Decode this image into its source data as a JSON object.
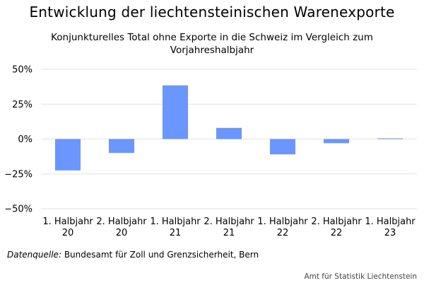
{
  "chart_data": {
    "type": "bar",
    "title": "Entwicklung der liechtensteinischen Warenexporte",
    "subtitle": "Konjunkturelles Total ohne Exporte in die Schweiz im Vergleich zum Vorjahreshalbjahr",
    "categories": [
      [
        "1. Halbjahr",
        "20"
      ],
      [
        "2. Halbjahr",
        "20"
      ],
      [
        "1. Halbjahr",
        "21"
      ],
      [
        "2. Halbjahr",
        "21"
      ],
      [
        "1. Halbjahr",
        "22"
      ],
      [
        "2. Halbjahr",
        "22"
      ],
      [
        "1. Halbjahr",
        "23"
      ]
    ],
    "values": [
      -22.5,
      -10,
      38.5,
      8,
      -11,
      -3,
      0.5
    ],
    "unit": "%",
    "ylim": [
      -50,
      50
    ],
    "yticks": [
      50,
      25,
      0,
      -25,
      -50
    ],
    "ytick_labels": [
      "50%",
      "25%",
      "0%",
      "−25%",
      "−50%"
    ],
    "grid": true,
    "legend": "none",
    "bar_color": "#6b95ff",
    "grid_color": "#e3e3e3",
    "xlabel": "",
    "ylabel": ""
  },
  "footer": {
    "source_label": "Datenquelle:",
    "source_text": " Bundesamt für Zoll und Grenzsicherheit, Bern",
    "credit": "Amt für Statistik Liechtenstein"
  }
}
